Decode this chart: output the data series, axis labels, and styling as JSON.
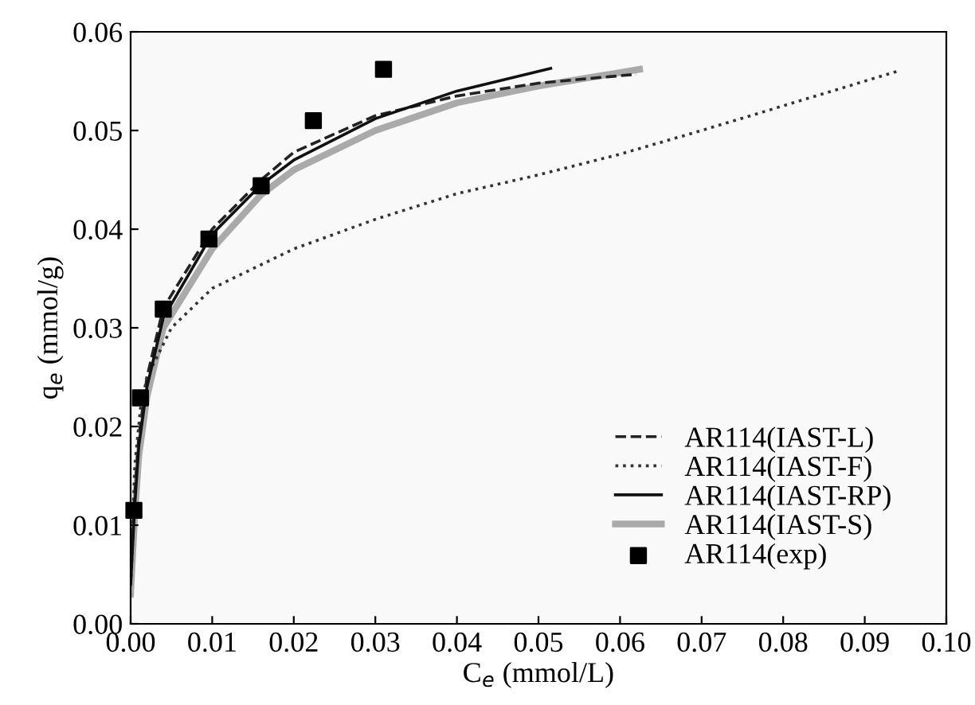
{
  "chart_data": {
    "type": "line",
    "xlabel": "C$_{e}$ (mmol/L)",
    "ylabel": "q$_{e}$ (mmol/g)",
    "xlim": [
      0,
      0.1
    ],
    "ylim": [
      0,
      0.06
    ],
    "xticks": [
      {
        "value": 0,
        "label": "0.00"
      },
      {
        "value": 0.01,
        "label": "0.01"
      },
      {
        "value": 0.02,
        "label": "0.02"
      },
      {
        "value": 0.03,
        "label": "0.03"
      },
      {
        "value": 0.04,
        "label": "0.04"
      },
      {
        "value": 0.05,
        "label": "0.05"
      },
      {
        "value": 0.06,
        "label": "0.06"
      },
      {
        "value": 0.07,
        "label": "0.07"
      },
      {
        "value": 0.08,
        "label": "0.08"
      },
      {
        "value": 0.09,
        "label": "0.09"
      },
      {
        "value": 0.1,
        "label": "0.10"
      }
    ],
    "yticks": [
      {
        "value": 0,
        "label": "0.00"
      },
      {
        "value": 0.01,
        "label": "0.01"
      },
      {
        "value": 0.02,
        "label": "0.02"
      },
      {
        "value": 0.03,
        "label": "0.03"
      },
      {
        "value": 0.04,
        "label": "0.04"
      },
      {
        "value": 0.05,
        "label": "0.05"
      },
      {
        "value": 0.06,
        "label": "0.06"
      }
    ],
    "grid": false,
    "legend": "bottom right",
    "series": [
      {
        "name": "AR114(IAST-L)",
        "color": "#222222",
        "line_style": "dashed",
        "x": [
          0,
          0.0005,
          0.001,
          0.002,
          0.004,
          0.01,
          0.016,
          0.02,
          0.03,
          0.04,
          0.05,
          0.062
        ],
        "values": [
          0.004,
          0.013,
          0.019,
          0.025,
          0.032,
          0.04,
          0.045,
          0.0478,
          0.0515,
          0.0535,
          0.0548,
          0.0557
        ]
      },
      {
        "name": "AR114(IAST-F)",
        "color": "#333333",
        "line_style": "dotted",
        "x": [
          0,
          0.0005,
          0.0012,
          0.002,
          0.005,
          0.01,
          0.02,
          0.03,
          0.04,
          0.05,
          0.06,
          0.07,
          0.08,
          0.094
        ],
        "values": [
          0.004,
          0.016,
          0.0218,
          0.025,
          0.03,
          0.034,
          0.038,
          0.041,
          0.0436,
          0.0455,
          0.0476,
          0.05,
          0.0525,
          0.056
        ]
      },
      {
        "name": "AR114(IAST-RP)",
        "color": "#111111",
        "line_style": "solid",
        "x": [
          0,
          0.0005,
          0.001,
          0.002,
          0.004,
          0.01,
          0.016,
          0.02,
          0.03,
          0.04,
          0.0515
        ],
        "values": [
          0.004,
          0.012,
          0.018,
          0.024,
          0.031,
          0.0395,
          0.0445,
          0.047,
          0.0512,
          0.054,
          0.0563
        ]
      },
      {
        "name": "AR114(IAST-S)",
        "color": "#aaaaaa",
        "line_style": "solid",
        "x": [
          0,
          0.0005,
          0.001,
          0.002,
          0.004,
          0.01,
          0.016,
          0.02,
          0.03,
          0.04,
          0.05,
          0.0624
        ],
        "values": [
          0.003,
          0.011,
          0.017,
          0.023,
          0.03,
          0.038,
          0.0435,
          0.046,
          0.05,
          0.0528,
          0.0545,
          0.0562
        ]
      },
      {
        "name": "AR114(exp)",
        "type": "scatter",
        "marker": "square",
        "color": "#000000",
        "x": [
          0.0004,
          0.0012,
          0.004,
          0.0096,
          0.016,
          0.0224,
          0.031
        ],
        "values": [
          0.0115,
          0.0229,
          0.0319,
          0.039,
          0.0444,
          0.051,
          0.0562
        ]
      }
    ]
  }
}
